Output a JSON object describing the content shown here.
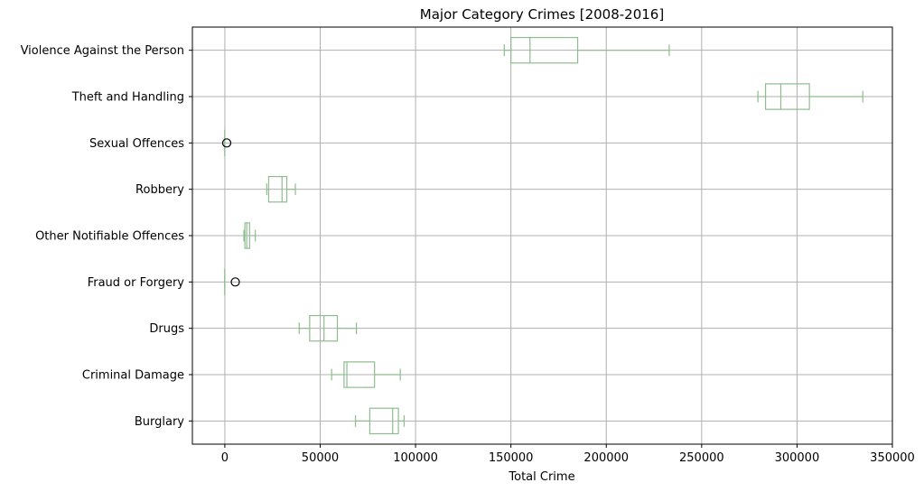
{
  "chart_data": {
    "type": "boxplot",
    "orientation": "horizontal",
    "title": "Major Category Crimes [2008-2016]",
    "xlabel": "Total Crime",
    "ylabel": "",
    "xlim": [
      -17000,
      350000
    ],
    "xticks": [
      0,
      50000,
      100000,
      150000,
      200000,
      250000,
      300000,
      350000
    ],
    "xtick_labels": [
      "0",
      "50000",
      "100000",
      "150000",
      "200000",
      "250000",
      "300000",
      "350000"
    ],
    "grid": true,
    "box_color": "#8fbc8f",
    "outlier_color": "#000000",
    "categories": [
      {
        "name": "Violence Against the Person",
        "whisker_low": 146500,
        "q1": 150000,
        "median": 160000,
        "q3": 185000,
        "whisker_high": 233000,
        "outliers": []
      },
      {
        "name": "Theft and Handling",
        "whisker_low": 279500,
        "q1": 283500,
        "median": 291500,
        "q3": 306500,
        "whisker_high": 334500,
        "outliers": []
      },
      {
        "name": "Sexual Offences",
        "whisker_low": 0,
        "q1": 0,
        "median": 0,
        "q3": 0,
        "whisker_high": 0,
        "outliers": [
          1000
        ]
      },
      {
        "name": "Robbery",
        "whisker_low": 22000,
        "q1": 23000,
        "median": 30000,
        "q3": 32500,
        "whisker_high": 37000,
        "outliers": []
      },
      {
        "name": "Other Notifiable Offences",
        "whisker_low": 10000,
        "q1": 10500,
        "median": 11500,
        "q3": 13000,
        "whisker_high": 16000,
        "outliers": []
      },
      {
        "name": "Fraud or Forgery",
        "whisker_low": 0,
        "q1": 0,
        "median": 0,
        "q3": 0,
        "whisker_high": 0,
        "outliers": [
          5500
        ]
      },
      {
        "name": "Drugs",
        "whisker_low": 39000,
        "q1": 44500,
        "median": 52000,
        "q3": 59000,
        "whisker_high": 69000,
        "outliers": []
      },
      {
        "name": "Criminal Damage",
        "whisker_low": 56000,
        "q1": 62500,
        "median": 64000,
        "q3": 78500,
        "whisker_high": 92000,
        "outliers": []
      },
      {
        "name": "Burglary",
        "whisker_low": 68500,
        "q1": 76000,
        "median": 88000,
        "q3": 91000,
        "whisker_high": 94000,
        "outliers": []
      }
    ]
  }
}
